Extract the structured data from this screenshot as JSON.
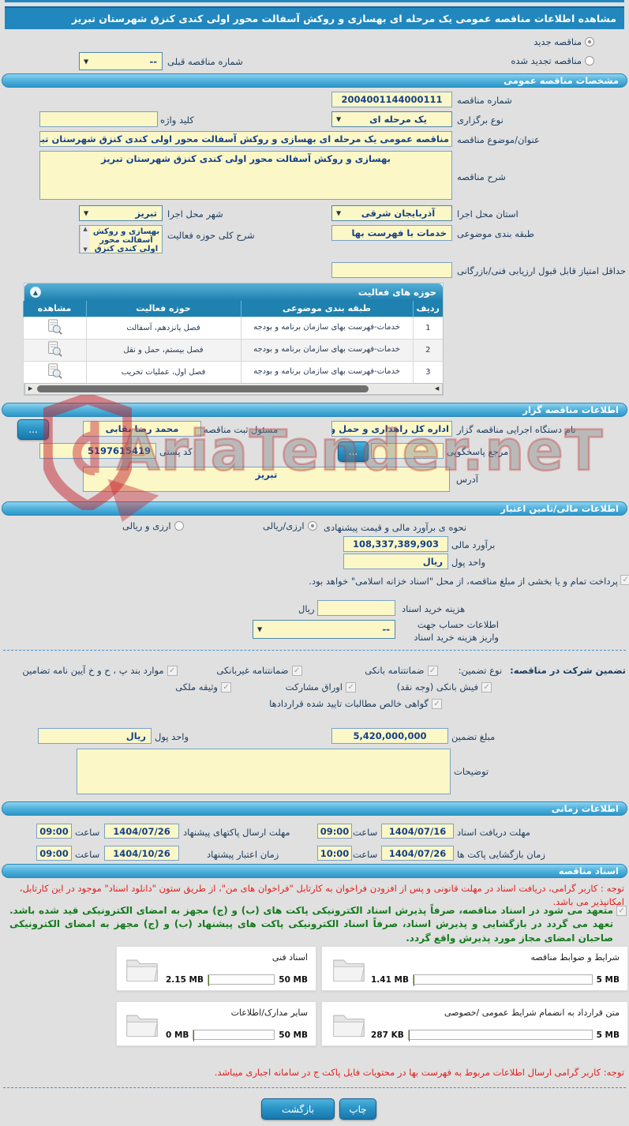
{
  "title": "مشاهده اطلاعات مناقصه عمومی یک مرحله ای بهسازی و روکش آسفالت محور اولی کندی کنزق شهرستان تبریز",
  "watermark": "AriaTender.neT",
  "top": {
    "new_label": "مناقصه جدید",
    "renew_label": "مناقصه تجدید شده",
    "prev_label": "شماره مناقصه قبلی",
    "prev_value": "--"
  },
  "specs": {
    "header": "مشخصات مناقصه عمومی",
    "number_label": "شماره مناقصه",
    "number_value": "2004001144000111",
    "type_label": "نوع برگزاری",
    "type_value": "یک مرحله ای",
    "keyword_label": "کلید واژه",
    "subject_label": "عنوان/موضوع مناقصه",
    "subject_value": "مناقصه عمومی یک مرحله ای بهسازی و روکش آسفالت محور اولی کندی کنزق شهرستان تبری",
    "desc_label": "شرح مناقصه",
    "desc_value": "بهسازی و روکش آسفالت محور اولی کندی کنزق شهرستان تبریز",
    "province_label": "استان محل اجرا",
    "province_value": "آذربایجان شرقی",
    "city_label": "شهر محل اجرا",
    "city_value": "تبریز",
    "category_label": "طبقه بندی موضوعی",
    "category_value": "خدمات با فهرست بها",
    "scope_label": "شرح کلی حوزه فعالیت",
    "scope_value": "بهسازی و روکش آسفالت محور اولی کندی کنزق",
    "min_score_label": "حداقل امتیاز قابل قبول ارزیابی فنی/بازرگانی"
  },
  "activity": {
    "header": "حوزه های فعالیت",
    "col_row": "ردیف",
    "col_category": "طبقه بندی موضوعی",
    "col_field": "حوزه فعالیت",
    "col_view": "مشاهده",
    "rows": [
      {
        "no": "1",
        "category": "خدمات-فهرست بهای سازمان برنامه و بودجه",
        "field": "فصل پانزدهم، آسفالت"
      },
      {
        "no": "2",
        "category": "خدمات-فهرست بهای سازمان برنامه و بودجه",
        "field": "فصل بیستم، حمل و نقل"
      },
      {
        "no": "3",
        "category": "خدمات-فهرست بهای سازمان برنامه و بودجه",
        "field": "فصل اول، عملیات تخریب"
      }
    ]
  },
  "gozar": {
    "header": "اطلاعات مناقصه گزار",
    "agency_label": "نام دستگاه اجرایی مناقصه گزار",
    "agency_value": "اداره کل راهداری و حمل و ن",
    "registrar_label": "مسئول ثبت مناقصه",
    "registrar_value": "محمد رضا نقابی",
    "ref_label": "مرجع پاسخگویی",
    "postal_label": "کد پستی",
    "postal_value": "5197615419",
    "address_label": "آدرس",
    "address_value": "تبریز",
    "more_label": "..."
  },
  "financial": {
    "header": "اطلاعات مالی/تامین اعتبار",
    "method_label": "نحوه ی برآورد مالی و قیمت پیشنهادی",
    "method_rial": "ارزی/ریالی",
    "method_both": "ارزی و ریالی",
    "estimate_label": "برآورد مالی",
    "estimate_value": "108,337,389,903",
    "currency_label": "واحد پول",
    "currency_value": "ریال",
    "treasury_note": "پرداخت تمام و یا بخشی از مبلغ مناقصه، از محل \"اسناد خزانه اسلامی\" خواهد بود.",
    "fee_label": "هزینه خرید اسناد",
    "fee_unit": "ریال",
    "account_label": "اطلاعات حساب جهت واریز هزینه خرید اسناد",
    "account_value": "--"
  },
  "guarantee": {
    "part1": "تضمین شرکت در مناقصه:",
    "part2": "نوع تضمین:",
    "opt1": "ضمانتنامه بانکی",
    "opt2": "ضمانتنامه غیربانکی",
    "opt3": "موارد بند پ ، ح و خ آیین نامه تضامین",
    "opt4": "فیش بانکی (وجه نقد)",
    "opt5": "اوراق مشارکت",
    "opt6": "وثیقه ملکی",
    "opt7": "گواهی خالص مطالبات تایید شده قراردادها",
    "amount_label": "مبلغ تضمین",
    "amount_value": "5,420,000,000",
    "currency_label": "واحد پول",
    "currency_value": "ریال",
    "notes_label": "توضیحات"
  },
  "timing": {
    "header": "اطلاعات زمانی",
    "hour_label": "ساعت",
    "r1": {
      "label": "مهلت دریافت اسناد",
      "date": "1404/07/16",
      "time": "09:00"
    },
    "r2": {
      "label": "مهلت ارسال پاکتهای پیشنهاد",
      "date": "1404/07/26",
      "time": "09:00"
    },
    "r3": {
      "label": "زمان بازگشایی پاکت ها",
      "date": "1404/07/26",
      "time": "10:00"
    },
    "r4": {
      "label": "زمان اعتبار پیشنهاد",
      "date": "1404/10/26",
      "time": "09:00"
    }
  },
  "docs": {
    "header": "اسناد مناقصه",
    "notice1": "توجه : کاربر گرامی، دریافت اسناد در مهلت قانونی و پس از افزودن فراخوان به کارتابل \"فراخوان های من\"، از طریق ستون \"دانلود اسناد\" موجود در این کارتابل، امکانپذیر می باشد.",
    "commitment": "متعهد می شود در اسناد مناقصه، صرفاً پذیرش اسناد الکترونیکی پاکت های (ب) و (ج) مجهز به امضای الکترونیکی قید شده باشد. تعهد می گردد در بازگشایی و پذیرش اسناد، صرفاً اسناد الکترونیکی پاکت های پیشنهاد (ب) و (ج) مجهز به امضای الکترونیکی صاحبان امضای مجاز مورد پذیرش واقع گردد.",
    "files": [
      {
        "label": "شرایط و ضوابط مناقصه",
        "used": "1.41 MB",
        "max": "5 MB",
        "pct": 28
      },
      {
        "label": "اسناد فنی",
        "used": "2.15 MB",
        "max": "50 MB",
        "pct": 5
      },
      {
        "label": "متن قرارداد به انضمام شرایط عمومی /خصوصی",
        "used": "287 KB",
        "max": "5 MB",
        "pct": 6
      },
      {
        "label": "سایر مدارک/اطلاعات",
        "used": "0 MB",
        "max": "50 MB",
        "pct": 0
      }
    ],
    "notice2": "توجه: کاربر گرامی ارسال اطلاعات مربوط به فهرست بها در محتویات فایل پاکت ج در سامانه اجباری میباشد."
  },
  "buttons": {
    "print": "چاپ",
    "back": "بازگشت"
  }
}
